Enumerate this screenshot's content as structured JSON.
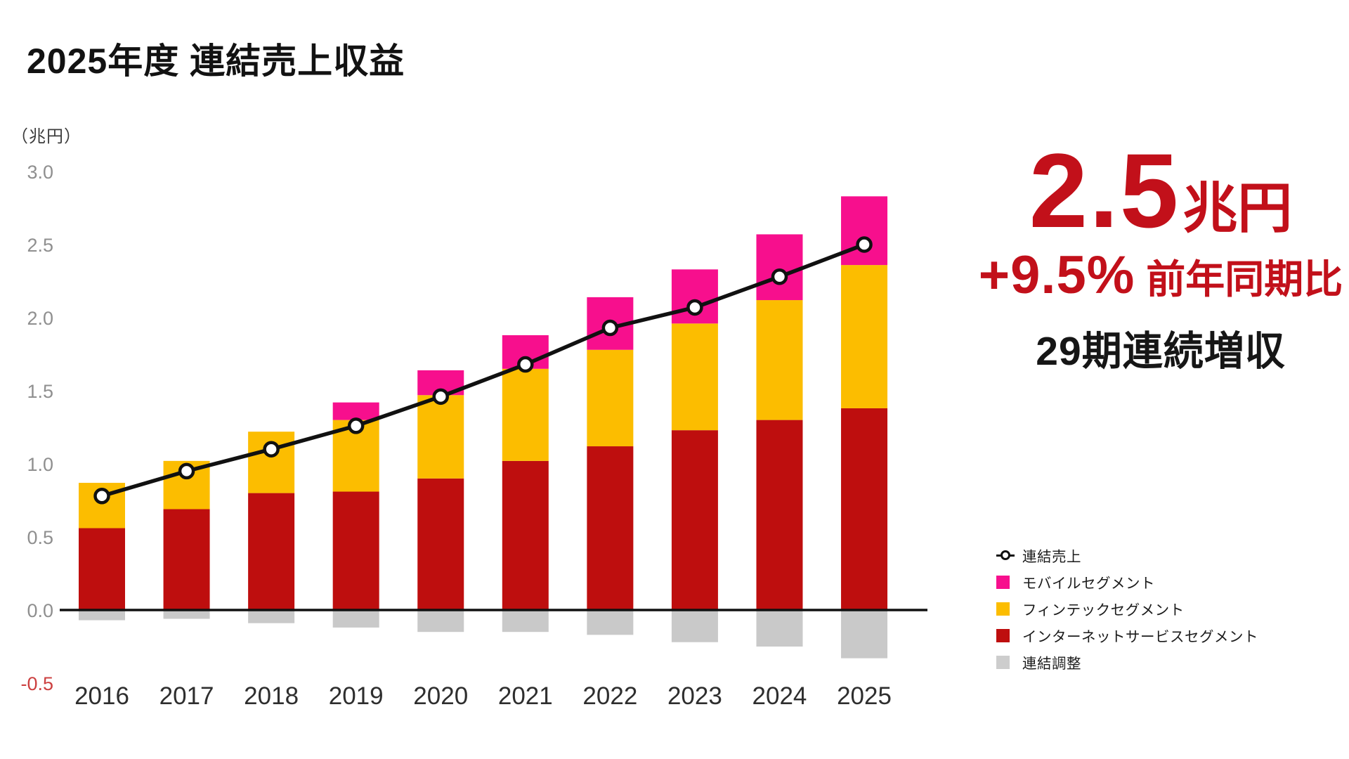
{
  "slide": {
    "title": "2025年度 連結売上収益",
    "unit_label": "（兆円）"
  },
  "right_panel": {
    "headline_value": "2.5",
    "headline_unit": "兆円",
    "yoy_value": "+9.5%",
    "yoy_label": "前年同期比",
    "streak": "29期連続増収"
  },
  "legend": {
    "items": [
      {
        "label": "連結売上",
        "type": "line",
        "icon_name": "consolidated-revenue-line-marker-icon",
        "color": "#111111"
      },
      {
        "label": "モバイルセグメント",
        "type": "swatch",
        "icon_name": "mobile-segment-swatch-icon",
        "color": "#F70F8D"
      },
      {
        "label": "フィンテックセグメント",
        "type": "swatch",
        "icon_name": "fintech-segment-swatch-icon",
        "color": "#FCBD00"
      },
      {
        "label": "インターネットサービスセグメント",
        "type": "swatch",
        "icon_name": "internet-segment-swatch-icon",
        "color": "#BE0E0E"
      },
      {
        "label": "連結調整",
        "type": "swatch",
        "icon_name": "adjustment-swatch-icon",
        "color": "#CDCDCD"
      }
    ]
  },
  "colors": {
    "bar_internet": "#BE0E0E",
    "bar_fintech": "#FCBD00",
    "bar_mobile": "#F70F8D",
    "bar_adjustment": "#C9C9C9",
    "line": "#111111",
    "marker_fill": "#FFFFFF",
    "tick_label": "#8F8F8F",
    "negative_tick_label": "#CC4040",
    "year_label": "#2E2E2E",
    "accent_text": "#C2101A"
  },
  "chart_data": {
    "type": "bar",
    "stacked": true,
    "overlay": "line",
    "title": "2025年度 連結売上収益",
    "unit": "兆円",
    "xlabel": "",
    "ylabel": "（兆円）",
    "categories": [
      "2016",
      "2017",
      "2018",
      "2019",
      "2020",
      "2021",
      "2022",
      "2023",
      "2024",
      "2025"
    ],
    "series": [
      {
        "key": "internet",
        "name": "インターネットサービスセグメント",
        "color": "#BE0E0E",
        "values": [
          0.56,
          0.69,
          0.8,
          0.81,
          0.9,
          1.02,
          1.12,
          1.23,
          1.3,
          1.38
        ]
      },
      {
        "key": "fintech",
        "name": "フィンテックセグメント",
        "color": "#FCBD00",
        "values": [
          0.31,
          0.33,
          0.42,
          0.49,
          0.57,
          0.63,
          0.66,
          0.73,
          0.82,
          0.98
        ]
      },
      {
        "key": "mobile",
        "name": "モバイルセグメント",
        "color": "#F70F8D",
        "values": [
          0,
          0,
          0,
          0.12,
          0.17,
          0.23,
          0.36,
          0.37,
          0.45,
          0.47
        ]
      },
      {
        "key": "adjustment",
        "name": "連結調整",
        "color": "#C9C9C9",
        "values": [
          -0.07,
          -0.06,
          -0.09,
          -0.12,
          -0.15,
          -0.15,
          -0.17,
          -0.22,
          -0.25,
          -0.33
        ]
      }
    ],
    "line_series": {
      "name": "連結売上",
      "values": [
        0.78,
        0.95,
        1.1,
        1.26,
        1.46,
        1.68,
        1.93,
        2.07,
        2.28,
        2.5
      ]
    },
    "ylim": [
      -0.5,
      3.0
    ],
    "yticks": [
      3.0,
      2.5,
      2.0,
      1.5,
      1.0,
      0.5,
      0.0,
      -0.5
    ],
    "grid": false,
    "legend_position": "right-bottom"
  }
}
